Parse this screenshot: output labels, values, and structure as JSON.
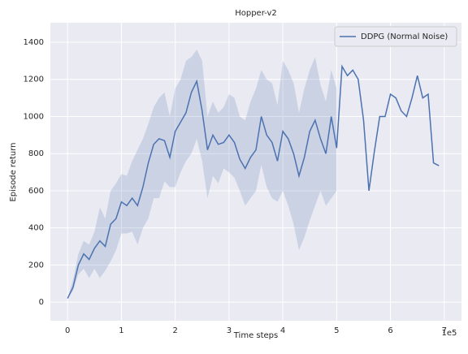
{
  "chart_data": {
    "type": "line",
    "title": "Hopper-v2",
    "xlabel": "Time steps",
    "ylabel": "Episode return",
    "x_offset_label": "1e5",
    "x": [
      0.0,
      0.1,
      0.2,
      0.3,
      0.4,
      0.5,
      0.6,
      0.7,
      0.8,
      0.9,
      1.0,
      1.1,
      1.2,
      1.3,
      1.4,
      1.5,
      1.6,
      1.7,
      1.8,
      1.9,
      2.0,
      2.1,
      2.2,
      2.3,
      2.4,
      2.5,
      2.6,
      2.7,
      2.8,
      2.9,
      3.0,
      3.1,
      3.2,
      3.3,
      3.4,
      3.5,
      3.6,
      3.7,
      3.8,
      3.9,
      4.0,
      4.1,
      4.2,
      4.3,
      4.4,
      4.5,
      4.6,
      4.7,
      4.8,
      4.9,
      5.0,
      5.1,
      5.2,
      5.3,
      5.4,
      5.5,
      5.6,
      5.7,
      5.8,
      5.9,
      6.0,
      6.1,
      6.2,
      6.3,
      6.4,
      6.5,
      6.6,
      6.7,
      6.8,
      6.9
    ],
    "series": [
      {
        "name": "DDPG (Normal Noise)",
        "color": "#4c72b0",
        "values": [
          20,
          80,
          200,
          260,
          230,
          290,
          330,
          300,
          420,
          450,
          540,
          520,
          560,
          520,
          620,
          750,
          850,
          880,
          870,
          780,
          920,
          970,
          1020,
          1130,
          1190,
          1030,
          820,
          900,
          850,
          860,
          900,
          860,
          770,
          720,
          780,
          820,
          1000,
          900,
          860,
          760,
          920,
          880,
          800,
          680,
          780,
          920,
          980,
          880,
          800,
          1000,
          830,
          1270,
          1220,
          1250,
          1200,
          980,
          600,
          810,
          1000,
          1000,
          1120,
          1100,
          1030,
          1000,
          1100,
          1220,
          1100,
          1120,
          750,
          735
        ],
        "lower": [
          20,
          60,
          150,
          180,
          130,
          180,
          130,
          170,
          220,
          280,
          370,
          370,
          380,
          310,
          400,
          450,
          560,
          560,
          650,
          620,
          620,
          700,
          760,
          800,
          880,
          760,
          560,
          680,
          640,
          720,
          700,
          670,
          600,
          520,
          560,
          600,
          740,
          620,
          560,
          540,
          600,
          520,
          420,
          280,
          350,
          440,
          520,
          600,
          520,
          560,
          600,
          null,
          null,
          null,
          null,
          null,
          null,
          null,
          null,
          null,
          null,
          null,
          null,
          null,
          null,
          null,
          null,
          null,
          null,
          null
        ],
        "upper": [
          20,
          120,
          260,
          330,
          310,
          380,
          510,
          450,
          600,
          640,
          690,
          680,
          760,
          820,
          880,
          960,
          1050,
          1100,
          1130,
          1000,
          1150,
          1200,
          1300,
          1320,
          1360,
          1300,
          1000,
          1080,
          1020,
          1050,
          1120,
          1100,
          1000,
          980,
          1080,
          1150,
          1250,
          1200,
          1180,
          1060,
          1300,
          1250,
          1180,
          1020,
          1150,
          1250,
          1320,
          1170,
          1080,
          1250,
          1150,
          null,
          null,
          null,
          null,
          null,
          null,
          null,
          null,
          null,
          null,
          null,
          null,
          null,
          null,
          null,
          null,
          null,
          null,
          null
        ]
      }
    ],
    "xlim": [
      -0.32,
      7.32
    ],
    "ylim": [
      -100,
      1505
    ],
    "xticks": [
      0,
      1,
      2,
      3,
      4,
      5,
      6,
      7
    ],
    "yticks": [
      0,
      200,
      400,
      600,
      800,
      1000,
      1200,
      1400
    ],
    "grid": true,
    "legend": "upper right"
  }
}
